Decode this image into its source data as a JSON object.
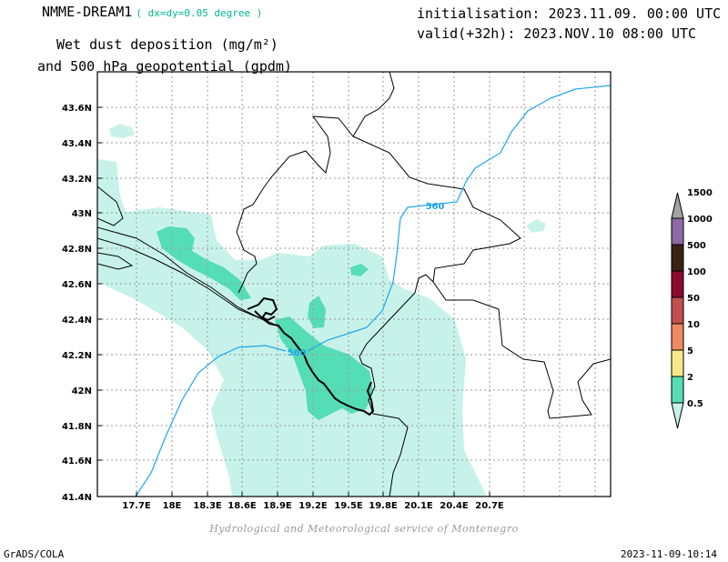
{
  "header": {
    "model": "NMME-DREAM1",
    "resolution": "( dx=dy=0.05 degree )",
    "variable_line1": "Wet dust deposition (mg/m²)",
    "variable_line2": "and 500 hPa geopotential (gpdm)",
    "init_label": "initialisation: 2023.11.09. 00:00 UTC",
    "valid_label": "valid(+32h): 2023.NOV.10 08:00 UTC"
  },
  "map": {
    "lon_range": [
      17.5,
      21.0
    ],
    "lat_range": [
      41.4,
      43.7
    ],
    "lon_ticks": [
      "17.7E",
      "18E",
      "18.3E",
      "18.6E",
      "18.9E",
      "19.2E",
      "19.5E",
      "19.8E",
      "20.1E",
      "20.4E",
      "20.7E"
    ],
    "lat_ticks": [
      "41.4N",
      "41.6N",
      "41.8N",
      "42N",
      "42.2N",
      "42.4N",
      "42.6N",
      "42.8N",
      "43N",
      "43.2N",
      "43.4N",
      "43.6N"
    ],
    "grid": true,
    "contour_label_1": "560",
    "contour_label_2": "560",
    "contour_color": "#1fa5e8",
    "shade_light": "#c7f2ea",
    "shade_medium": "#55ddb5"
  },
  "legend": {
    "levels": [
      "0.5",
      "2",
      "5",
      "10",
      "50",
      "100",
      "500",
      "1000",
      "1500"
    ],
    "colors": [
      "#c7f2ea",
      "#55ddb5",
      "#f7e98a",
      "#ef8a62",
      "#c0504d",
      "#8b0a32",
      "#3a2214",
      "#8c6aa4",
      "#a3a3a3"
    ]
  },
  "credit": "Hydrological and Meteorological service of Montenegro",
  "footer": {
    "left": "GrADS/COLA",
    "right": "2023-11-09-10:14"
  }
}
